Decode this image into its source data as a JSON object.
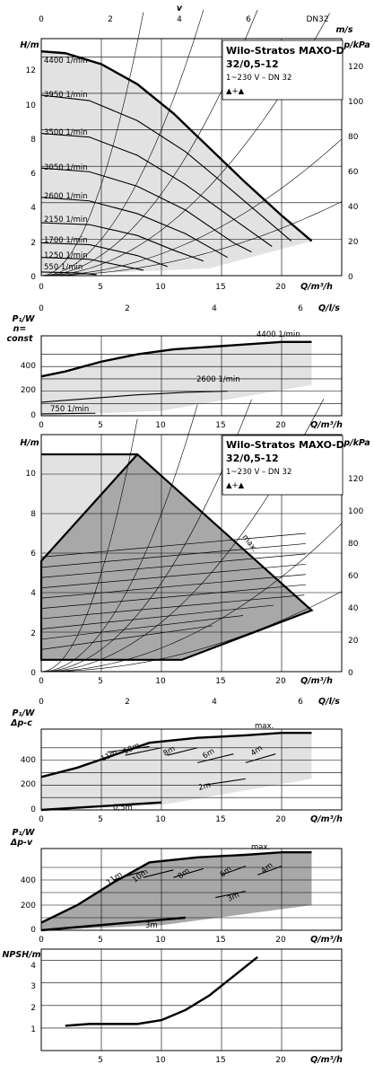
{
  "product": {
    "title_line1": "Wilo-Stratos MAXO-D",
    "title_line2": "32/0,5-12",
    "subtitle": "1~230 V – DN 32",
    "mode_symbol": "▲+▲"
  },
  "top_axis": {
    "label": "v",
    "unit_label": "m/s",
    "ticks": [
      "0",
      "2",
      "4",
      "6"
    ],
    "tick_values": [
      0,
      2,
      4,
      6
    ],
    "extra_label": "DN32"
  },
  "flow_ls_axis": {
    "label": "Q/l/s",
    "ticks": [
      "0",
      "2",
      "4",
      "6"
    ],
    "tick_values": [
      0,
      2,
      4,
      6
    ]
  },
  "flow_axis": {
    "label": "Q/m³/h",
    "ticks": [
      "0",
      "5",
      "10",
      "15",
      "20"
    ],
    "tick_values": [
      0,
      5,
      10,
      15,
      20
    ]
  },
  "chart_data": [
    {
      "id": "head_const_speed",
      "type": "line",
      "ylabel": "H/m",
      "y2label": "p/kPa",
      "xlabel": "Q/m³/h",
      "xlim": [
        0,
        25
      ],
      "ylim": [
        0,
        13
      ],
      "yticks": [
        "0",
        "2",
        "4",
        "6",
        "8",
        "10",
        "12"
      ],
      "y2ticks": [
        "0",
        "20",
        "40",
        "60",
        "80",
        "100",
        "120"
      ],
      "grid": true,
      "series": [
        {
          "name": "4400 1/min",
          "x": [
            0,
            2,
            5,
            8,
            11,
            14,
            17,
            20,
            22.5
          ],
          "y": [
            12.3,
            12.2,
            11.6,
            10.5,
            8.9,
            7.0,
            5.1,
            3.3,
            1.9
          ]
        },
        {
          "name": "3950 1/min",
          "x": [
            0,
            4,
            8,
            12,
            16,
            20.8
          ],
          "y": [
            9.9,
            9.6,
            8.5,
            6.8,
            4.6,
            1.9
          ]
        },
        {
          "name": "3500 1/min",
          "x": [
            0,
            4,
            8,
            12,
            16,
            19.2
          ],
          "y": [
            7.8,
            7.6,
            6.6,
            5.0,
            3.1,
            1.6
          ]
        },
        {
          "name": "3050 1/min",
          "x": [
            0,
            4,
            8,
            12,
            16,
            17.5
          ],
          "y": [
            5.9,
            5.7,
            4.9,
            3.6,
            1.8,
            1.3
          ]
        },
        {
          "name": "2600 1/min",
          "x": [
            0,
            4,
            8,
            12,
            15.5
          ],
          "y": [
            4.3,
            4.1,
            3.4,
            2.3,
            1.0
          ]
        },
        {
          "name": "2150 1/min",
          "x": [
            0,
            4,
            8,
            11,
            13.5
          ],
          "y": [
            2.9,
            2.8,
            2.2,
            1.4,
            0.8
          ]
        },
        {
          "name": "1700 1/min",
          "x": [
            0,
            4,
            8,
            10.5
          ],
          "y": [
            1.8,
            1.7,
            1.1,
            0.5
          ]
        },
        {
          "name": "1250 1/min",
          "x": [
            0,
            4,
            7,
            8.5
          ],
          "y": [
            1.0,
            0.9,
            0.5,
            0.3
          ]
        },
        {
          "name": "550 1/min",
          "x": [
            0,
            3,
            4.6
          ],
          "y": [
            0.2,
            0.15,
            0.05
          ]
        }
      ]
    },
    {
      "id": "power_const_speed",
      "type": "line",
      "ylabel": "P₁/W",
      "ylabel2": "n=",
      "ylabel3": "const",
      "xlabel": "Q/m³/h",
      "xlim": [
        0,
        25
      ],
      "ylim": [
        0,
        650
      ],
      "yticks": [
        "0",
        "200",
        "400"
      ],
      "grid": true,
      "series": [
        {
          "name": "4400 1/min",
          "x": [
            0,
            2,
            5,
            8,
            11,
            14,
            17,
            20,
            22.5
          ],
          "y": [
            320,
            360,
            440,
            500,
            540,
            560,
            580,
            600,
            600
          ]
        },
        {
          "name": "2600 1/min",
          "x": [
            0,
            4,
            8,
            12,
            15.5
          ],
          "y": [
            110,
            140,
            170,
            190,
            200
          ]
        },
        {
          "name": "750 1/min",
          "x": [
            0,
            2,
            4.5
          ],
          "y": [
            15,
            18,
            20
          ]
        }
      ]
    },
    {
      "id": "head_dp_c",
      "type": "area",
      "ylabel": "H/m",
      "y2label": "p/kPa",
      "xlabel": "Q/m³/h",
      "xlim": [
        0,
        25
      ],
      "ylim": [
        0,
        12
      ],
      "yticks": [
        "0",
        "2",
        "4",
        "6",
        "8",
        "10"
      ],
      "y2ticks": [
        "0",
        "20",
        "40",
        "60",
        "80",
        "100",
        "120"
      ],
      "grid": true,
      "annotations": [
        "max."
      ],
      "boundary": {
        "x": [
          0,
          0,
          8,
          22.5,
          11.7,
          0
        ],
        "y": [
          0.6,
          5.6,
          11,
          3.1,
          0.6,
          0.6
        ]
      }
    },
    {
      "id": "power_dp_c",
      "type": "line",
      "ylabel": "P₁/W",
      "ylabel2": "Δp-c",
      "xlabel": "Q/m³/h",
      "xlim": [
        0,
        25
      ],
      "ylim": [
        0,
        650
      ],
      "yticks": [
        "0",
        "200",
        "400"
      ],
      "grid": true,
      "series": [
        {
          "name": "max.",
          "x": [
            0,
            3,
            6,
            9,
            13,
            17,
            20,
            22.5
          ],
          "y": [
            265,
            340,
            440,
            540,
            580,
            600,
            620,
            620
          ]
        },
        {
          "name": "11m",
          "x": [
            5.5,
            9
          ],
          "y": [
            465,
            510
          ]
        },
        {
          "name": "10m",
          "x": [
            7,
            10
          ],
          "y": [
            440,
            500
          ]
        },
        {
          "name": "8m",
          "x": [
            10.5,
            13
          ],
          "y": [
            440,
            500
          ]
        },
        {
          "name": "6m",
          "x": [
            13,
            16
          ],
          "y": [
            380,
            450
          ]
        },
        {
          "name": "4m",
          "x": [
            17,
            19.5
          ],
          "y": [
            380,
            450
          ]
        },
        {
          "name": "2m",
          "x": [
            13.5,
            17
          ],
          "y": [
            200,
            250
          ]
        },
        {
          "name": "0.5m",
          "x": [
            0,
            10
          ],
          "y": [
            0,
            60
          ]
        }
      ]
    },
    {
      "id": "power_dp_v",
      "type": "line",
      "ylabel": "P₁/W",
      "ylabel2": "Δp-v",
      "xlabel": "Q/m³/h",
      "xlim": [
        0,
        25
      ],
      "ylim": [
        0,
        650
      ],
      "yticks": [
        "0",
        "200",
        "400"
      ],
      "grid": true,
      "series": [
        {
          "name": "max.",
          "x": [
            0,
            3,
            6,
            9,
            13,
            17,
            20,
            22.5
          ],
          "y": [
            60,
            200,
            380,
            540,
            580,
            600,
            620,
            620
          ]
        },
        {
          "name": "11m",
          "x": [
            6,
            8.5
          ],
          "y": [
            400,
            470
          ]
        },
        {
          "name": "10m",
          "x": [
            8.5,
            11
          ],
          "y": [
            420,
            480
          ]
        },
        {
          "name": "8m",
          "x": [
            11,
            13.5
          ],
          "y": [
            420,
            490
          ]
        },
        {
          "name": "6m",
          "x": [
            15,
            17
          ],
          "y": [
            440,
            510
          ]
        },
        {
          "name": "4m",
          "x": [
            18,
            20
          ],
          "y": [
            440,
            510
          ]
        },
        {
          "name": "3m",
          "x": [
            14.5,
            17
          ],
          "y": [
            260,
            310
          ]
        },
        {
          "name": "3m (low)",
          "x": [
            0,
            12
          ],
          "y": [
            0,
            100
          ]
        }
      ]
    },
    {
      "id": "npsh",
      "type": "line",
      "ylabel": "NPSH/m",
      "xlabel": "Q/m³/h",
      "xlim": [
        0,
        25
      ],
      "ylim": [
        0,
        4.5
      ],
      "yticks": [
        "1",
        "2",
        "3",
        "4"
      ],
      "grid": true,
      "series": [
        {
          "name": "NPSH",
          "x": [
            2,
            4,
            6,
            8,
            10,
            12,
            14,
            16,
            18
          ],
          "y": [
            1.1,
            1.18,
            1.18,
            1.18,
            1.35,
            1.8,
            2.45,
            3.3,
            4.15
          ]
        }
      ]
    }
  ],
  "labels": {
    "c1_series": [
      "4400 1/min",
      "3950 1/min",
      "3500 1/min",
      "3050 1/min",
      "2600 1/min",
      "2150 1/min",
      "1700 1/min",
      "1250 1/min",
      "550 1/min"
    ],
    "c2_series": [
      "4400 1/min",
      "2600 1/min",
      "750 1/min"
    ],
    "c3_max": "max.",
    "c4_series": [
      "max.",
      "11m",
      "10m",
      "8m",
      "6m",
      "4m",
      "2m",
      "0,5m"
    ],
    "c5_series": [
      "max.",
      "11m",
      "10m",
      "8m",
      "6m",
      "4m",
      "3m",
      "3m"
    ]
  },
  "colors": {
    "fill_light": "#e2e2e2",
    "fill_dark": "#a8a8a8",
    "grid": "#000000",
    "curve": "#000000"
  }
}
